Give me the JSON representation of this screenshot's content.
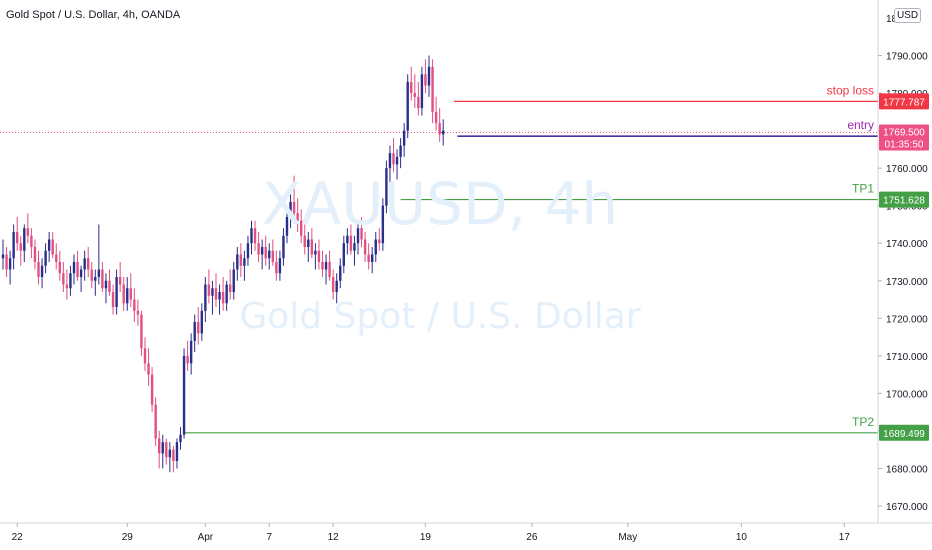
{
  "header": {
    "title": "Gold Spot / U.S. Dollar, 4h, OANDA",
    "currency_button": "USD"
  },
  "watermark": {
    "symbol": "XAUUSD, 4h",
    "description": "Gold Spot / U.S. Dollar"
  },
  "chart_data": {
    "type": "candlestick",
    "symbol": "XAUUSD",
    "interval": "4h",
    "source": "OANDA",
    "y_axis": {
      "min": 1664,
      "max": 1800,
      "ticks": [
        1670,
        1680,
        1690,
        1700,
        1710,
        1720,
        1730,
        1740,
        1750,
        1760,
        1770,
        1780,
        1790
      ],
      "tick_labels": [
        "1670.000",
        "1680.000",
        "1690.000",
        "1700.000",
        "1710.000",
        "1720.000",
        "1730.000",
        "1740.000",
        "1750.000",
        "1760.000",
        "1770.000",
        "1780.000",
        "1790.000"
      ],
      "top_cut_label": "18"
    },
    "x_axis": {
      "labels": [
        "22",
        "29",
        "Apr",
        "7",
        "12",
        "19",
        "26",
        "May",
        "10",
        "17"
      ],
      "bar_index": [
        4,
        35,
        57,
        75,
        93,
        119,
        149,
        176,
        208,
        237
      ]
    },
    "candle_up_color": "#2a2e8c",
    "candle_down_color": "#e24f81",
    "candles": [
      {
        "o": 1736,
        "h": 1741,
        "l": 1733,
        "c": 1737
      },
      {
        "o": 1737,
        "h": 1739,
        "l": 1731,
        "c": 1733
      },
      {
        "o": 1733,
        "h": 1738,
        "l": 1729,
        "c": 1736
      },
      {
        "o": 1736,
        "h": 1745,
        "l": 1733,
        "c": 1743
      },
      {
        "o": 1743,
        "h": 1747,
        "l": 1738,
        "c": 1740
      },
      {
        "o": 1740,
        "h": 1742,
        "l": 1734,
        "c": 1738
      },
      {
        "o": 1738,
        "h": 1745,
        "l": 1735,
        "c": 1744
      },
      {
        "o": 1744,
        "h": 1748,
        "l": 1740,
        "c": 1742
      },
      {
        "o": 1742,
        "h": 1744,
        "l": 1736,
        "c": 1739
      },
      {
        "o": 1739,
        "h": 1741,
        "l": 1733,
        "c": 1735
      },
      {
        "o": 1735,
        "h": 1738,
        "l": 1729,
        "c": 1731
      },
      {
        "o": 1731,
        "h": 1736,
        "l": 1728,
        "c": 1734
      },
      {
        "o": 1734,
        "h": 1740,
        "l": 1732,
        "c": 1738
      },
      {
        "o": 1738,
        "h": 1743,
        "l": 1735,
        "c": 1741
      },
      {
        "o": 1741,
        "h": 1743,
        "l": 1736,
        "c": 1737
      },
      {
        "o": 1737,
        "h": 1740,
        "l": 1733,
        "c": 1735
      },
      {
        "o": 1735,
        "h": 1738,
        "l": 1730,
        "c": 1732
      },
      {
        "o": 1732,
        "h": 1735,
        "l": 1727,
        "c": 1729
      },
      {
        "o": 1729,
        "h": 1733,
        "l": 1725,
        "c": 1728
      },
      {
        "o": 1728,
        "h": 1734,
        "l": 1726,
        "c": 1732
      },
      {
        "o": 1732,
        "h": 1737,
        "l": 1729,
        "c": 1735
      },
      {
        "o": 1735,
        "h": 1738,
        "l": 1730,
        "c": 1731
      },
      {
        "o": 1731,
        "h": 1734,
        "l": 1727,
        "c": 1733
      },
      {
        "o": 1733,
        "h": 1738,
        "l": 1730,
        "c": 1736
      },
      {
        "o": 1736,
        "h": 1739,
        "l": 1731,
        "c": 1733
      },
      {
        "o": 1733,
        "h": 1735,
        "l": 1728,
        "c": 1730
      },
      {
        "o": 1730,
        "h": 1733,
        "l": 1726,
        "c": 1731
      },
      {
        "o": 1731,
        "h": 1745,
        "l": 1729,
        "c": 1733
      },
      {
        "o": 1733,
        "h": 1735,
        "l": 1727,
        "c": 1728
      },
      {
        "o": 1728,
        "h": 1732,
        "l": 1724,
        "c": 1730
      },
      {
        "o": 1730,
        "h": 1733,
        "l": 1726,
        "c": 1727
      },
      {
        "o": 1727,
        "h": 1729,
        "l": 1721,
        "c": 1723
      },
      {
        "o": 1723,
        "h": 1733,
        "l": 1721,
        "c": 1731
      },
      {
        "o": 1731,
        "h": 1735,
        "l": 1727,
        "c": 1729
      },
      {
        "o": 1729,
        "h": 1731,
        "l": 1722,
        "c": 1724
      },
      {
        "o": 1724,
        "h": 1731,
        "l": 1722,
        "c": 1728
      },
      {
        "o": 1728,
        "h": 1732,
        "l": 1723,
        "c": 1725
      },
      {
        "o": 1725,
        "h": 1728,
        "l": 1719,
        "c": 1722
      },
      {
        "o": 1722,
        "h": 1725,
        "l": 1718,
        "c": 1721
      },
      {
        "o": 1721,
        "h": 1722,
        "l": 1710,
        "c": 1712
      },
      {
        "o": 1712,
        "h": 1715,
        "l": 1706,
        "c": 1708
      },
      {
        "o": 1708,
        "h": 1712,
        "l": 1702,
        "c": 1705
      },
      {
        "o": 1705,
        "h": 1707,
        "l": 1695,
        "c": 1697
      },
      {
        "o": 1697,
        "h": 1699,
        "l": 1686,
        "c": 1688
      },
      {
        "o": 1688,
        "h": 1690,
        "l": 1680,
        "c": 1684
      },
      {
        "o": 1684,
        "h": 1689,
        "l": 1680,
        "c": 1687
      },
      {
        "o": 1687,
        "h": 1688,
        "l": 1681,
        "c": 1683
      },
      {
        "o": 1683,
        "h": 1687,
        "l": 1679,
        "c": 1685
      },
      {
        "o": 1685,
        "h": 1686,
        "l": 1679,
        "c": 1682
      },
      {
        "o": 1682,
        "h": 1688,
        "l": 1680,
        "c": 1687
      },
      {
        "o": 1687,
        "h": 1691,
        "l": 1685,
        "c": 1689
      },
      {
        "o": 1689,
        "h": 1712,
        "l": 1688,
        "c": 1710
      },
      {
        "o": 1710,
        "h": 1714,
        "l": 1706,
        "c": 1708
      },
      {
        "o": 1708,
        "h": 1716,
        "l": 1705,
        "c": 1714
      },
      {
        "o": 1714,
        "h": 1721,
        "l": 1711,
        "c": 1719
      },
      {
        "o": 1719,
        "h": 1723,
        "l": 1713,
        "c": 1716
      },
      {
        "o": 1716,
        "h": 1724,
        "l": 1714,
        "c": 1722
      },
      {
        "o": 1722,
        "h": 1731,
        "l": 1719,
        "c": 1729
      },
      {
        "o": 1729,
        "h": 1733,
        "l": 1724,
        "c": 1726
      },
      {
        "o": 1726,
        "h": 1730,
        "l": 1721,
        "c": 1728
      },
      {
        "o": 1728,
        "h": 1732,
        "l": 1723,
        "c": 1725
      },
      {
        "o": 1725,
        "h": 1729,
        "l": 1721,
        "c": 1727
      },
      {
        "o": 1727,
        "h": 1731,
        "l": 1722,
        "c": 1724
      },
      {
        "o": 1724,
        "h": 1730,
        "l": 1722,
        "c": 1729
      },
      {
        "o": 1729,
        "h": 1733,
        "l": 1725,
        "c": 1727
      },
      {
        "o": 1727,
        "h": 1735,
        "l": 1725,
        "c": 1733
      },
      {
        "o": 1733,
        "h": 1739,
        "l": 1730,
        "c": 1737
      },
      {
        "o": 1737,
        "h": 1740,
        "l": 1731,
        "c": 1734
      },
      {
        "o": 1734,
        "h": 1738,
        "l": 1730,
        "c": 1736
      },
      {
        "o": 1736,
        "h": 1742,
        "l": 1734,
        "c": 1740
      },
      {
        "o": 1740,
        "h": 1746,
        "l": 1737,
        "c": 1744
      },
      {
        "o": 1744,
        "h": 1746,
        "l": 1738,
        "c": 1740
      },
      {
        "o": 1740,
        "h": 1743,
        "l": 1735,
        "c": 1737
      },
      {
        "o": 1737,
        "h": 1741,
        "l": 1733,
        "c": 1739
      },
      {
        "o": 1739,
        "h": 1742,
        "l": 1734,
        "c": 1736
      },
      {
        "o": 1736,
        "h": 1740,
        "l": 1733,
        "c": 1738
      },
      {
        "o": 1738,
        "h": 1741,
        "l": 1734,
        "c": 1735
      },
      {
        "o": 1735,
        "h": 1738,
        "l": 1730,
        "c": 1732
      },
      {
        "o": 1732,
        "h": 1738,
        "l": 1730,
        "c": 1736
      },
      {
        "o": 1736,
        "h": 1744,
        "l": 1734,
        "c": 1742
      },
      {
        "o": 1742,
        "h": 1749,
        "l": 1740,
        "c": 1747
      },
      {
        "o": 1747,
        "h": 1753,
        "l": 1744,
        "c": 1751
      },
      {
        "o": 1751,
        "h": 1758,
        "l": 1746,
        "c": 1748
      },
      {
        "o": 1748,
        "h": 1752,
        "l": 1743,
        "c": 1746
      },
      {
        "o": 1746,
        "h": 1749,
        "l": 1740,
        "c": 1742
      },
      {
        "o": 1742,
        "h": 1745,
        "l": 1737,
        "c": 1739
      },
      {
        "o": 1739,
        "h": 1743,
        "l": 1735,
        "c": 1741
      },
      {
        "o": 1741,
        "h": 1744,
        "l": 1736,
        "c": 1737
      },
      {
        "o": 1737,
        "h": 1740,
        "l": 1733,
        "c": 1738
      },
      {
        "o": 1738,
        "h": 1741,
        "l": 1733,
        "c": 1735
      },
      {
        "o": 1735,
        "h": 1738,
        "l": 1731,
        "c": 1733
      },
      {
        "o": 1733,
        "h": 1737,
        "l": 1729,
        "c": 1735
      },
      {
        "o": 1735,
        "h": 1738,
        "l": 1730,
        "c": 1731
      },
      {
        "o": 1731,
        "h": 1733,
        "l": 1725,
        "c": 1727
      },
      {
        "o": 1727,
        "h": 1732,
        "l": 1724,
        "c": 1730
      },
      {
        "o": 1730,
        "h": 1736,
        "l": 1728,
        "c": 1734
      },
      {
        "o": 1734,
        "h": 1742,
        "l": 1732,
        "c": 1740
      },
      {
        "o": 1740,
        "h": 1744,
        "l": 1737,
        "c": 1742
      },
      {
        "o": 1742,
        "h": 1745,
        "l": 1737,
        "c": 1738
      },
      {
        "o": 1738,
        "h": 1742,
        "l": 1734,
        "c": 1740
      },
      {
        "o": 1740,
        "h": 1746,
        "l": 1737,
        "c": 1744
      },
      {
        "o": 1744,
        "h": 1747,
        "l": 1739,
        "c": 1741
      },
      {
        "o": 1741,
        "h": 1743,
        "l": 1735,
        "c": 1737
      },
      {
        "o": 1737,
        "h": 1740,
        "l": 1733,
        "c": 1735
      },
      {
        "o": 1735,
        "h": 1739,
        "l": 1732,
        "c": 1737
      },
      {
        "o": 1737,
        "h": 1743,
        "l": 1735,
        "c": 1741
      },
      {
        "o": 1741,
        "h": 1744,
        "l": 1738,
        "c": 1740
      },
      {
        "o": 1740,
        "h": 1752,
        "l": 1738,
        "c": 1750
      },
      {
        "o": 1750,
        "h": 1762,
        "l": 1748,
        "c": 1760
      },
      {
        "o": 1760,
        "h": 1766,
        "l": 1756,
        "c": 1764
      },
      {
        "o": 1764,
        "h": 1768,
        "l": 1759,
        "c": 1761
      },
      {
        "o": 1761,
        "h": 1765,
        "l": 1757,
        "c": 1763
      },
      {
        "o": 1763,
        "h": 1768,
        "l": 1760,
        "c": 1766
      },
      {
        "o": 1766,
        "h": 1772,
        "l": 1763,
        "c": 1770
      },
      {
        "o": 1770,
        "h": 1785,
        "l": 1768,
        "c": 1783
      },
      {
        "o": 1783,
        "h": 1787,
        "l": 1778,
        "c": 1780
      },
      {
        "o": 1780,
        "h": 1785,
        "l": 1776,
        "c": 1779
      },
      {
        "o": 1779,
        "h": 1783,
        "l": 1774,
        "c": 1776
      },
      {
        "o": 1776,
        "h": 1787,
        "l": 1774,
        "c": 1785
      },
      {
        "o": 1785,
        "h": 1789,
        "l": 1780,
        "c": 1782
      },
      {
        "o": 1782,
        "h": 1790,
        "l": 1779,
        "c": 1787
      },
      {
        "o": 1787,
        "h": 1789,
        "l": 1772,
        "c": 1775
      },
      {
        "o": 1775,
        "h": 1779,
        "l": 1770,
        "c": 1772
      },
      {
        "o": 1772,
        "h": 1776,
        "l": 1767,
        "c": 1769
      },
      {
        "o": 1769,
        "h": 1773,
        "l": 1766,
        "c": 1770
      }
    ],
    "levels": [
      {
        "name": "stop loss",
        "value": 1777.787,
        "label": "1777.787",
        "color": "#f23645"
      },
      {
        "name": "entry",
        "value": 1768.522,
        "label": "1768.522",
        "color": "#4b2fa6",
        "label_color": "#9c27b0"
      },
      {
        "name": "TP1",
        "value": 1751.628,
        "label": "1751.628",
        "color": "#43a047"
      },
      {
        "name": "TP2",
        "value": 1689.499,
        "label": "1689.499",
        "color": "#43a047"
      }
    ],
    "last_price": {
      "value": 1769.5,
      "label": "1769.500",
      "countdown": "01:35:50",
      "color": "#ef5083"
    }
  }
}
